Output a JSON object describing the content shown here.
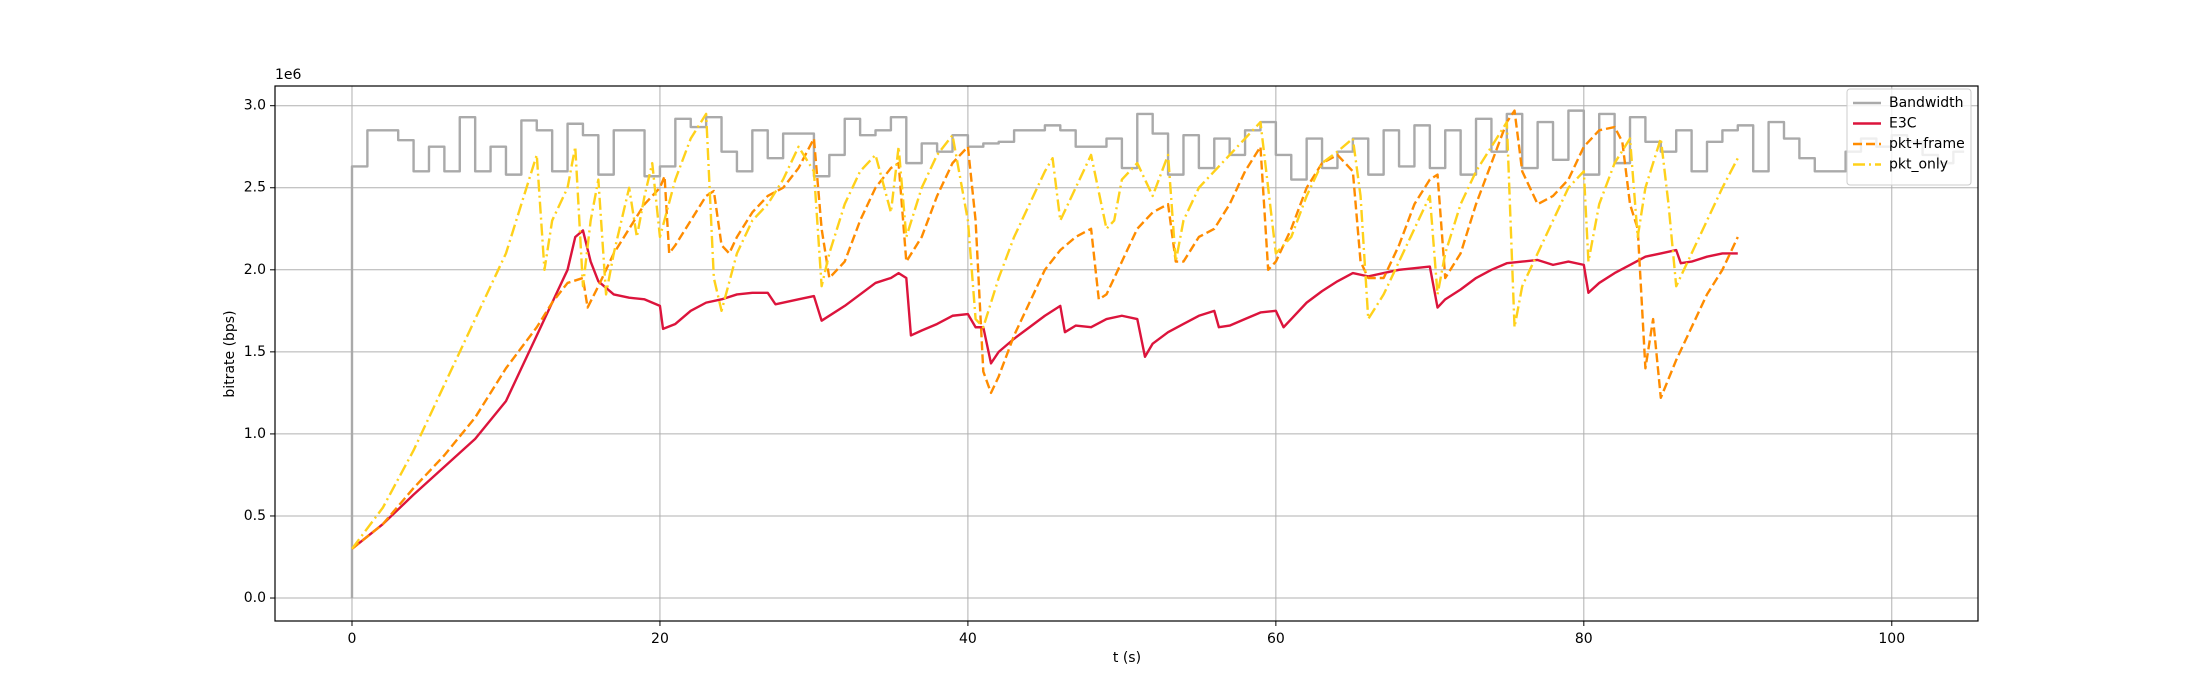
{
  "chart_data": {
    "type": "line",
    "xlabel": "t (s)",
    "ylabel": "bitrate (bps)",
    "y_offset_text": "1e6",
    "xlim": [
      -5,
      105.6
    ],
    "ylim": [
      -140000,
      3120000
    ],
    "xticks": [
      0,
      20,
      40,
      60,
      80,
      100
    ],
    "yticks": [
      {
        "value": 0,
        "label": "0.0"
      },
      {
        "value": 500000,
        "label": "0.5"
      },
      {
        "value": 1000000,
        "label": "1.0"
      },
      {
        "value": 1500000,
        "label": "1.5"
      },
      {
        "value": 2000000,
        "label": "2.0"
      },
      {
        "value": 2500000,
        "label": "2.5"
      },
      {
        "value": 3000000,
        "label": "3.0"
      }
    ],
    "grid": true,
    "legend": "upper right",
    "series": [
      {
        "name": "Bandwidth",
        "color": "#aaaaaa",
        "linestyle": "solid",
        "drawstyle": "steps-post",
        "x": [
          0,
          0,
          1,
          2,
          3,
          4,
          5,
          6,
          7,
          8,
          9,
          10,
          11,
          12,
          13,
          14,
          15,
          16,
          17,
          18,
          19,
          20,
          21,
          22,
          23,
          24,
          25,
          26,
          27,
          28,
          29,
          30,
          31,
          32,
          33,
          34,
          35,
          36,
          37,
          38,
          39,
          40,
          41,
          42,
          43,
          44,
          45,
          46,
          47,
          48,
          49,
          50,
          51,
          52,
          53,
          54,
          55,
          56,
          57,
          58,
          59,
          60,
          61,
          62,
          63,
          64,
          65,
          66,
          67,
          68,
          69,
          70,
          71,
          72,
          73,
          74,
          75,
          76,
          77,
          78,
          79,
          80,
          81,
          82,
          83,
          84,
          85,
          86,
          87,
          88,
          89,
          90,
          91,
          92,
          93,
          94,
          95,
          96,
          97,
          98,
          99,
          100,
          101,
          102,
          103,
          104,
          104.7
        ],
        "values": [
          0,
          2630000,
          2850000,
          2850000,
          2790000,
          2600000,
          2750000,
          2600000,
          2930000,
          2600000,
          2750000,
          2580000,
          2910000,
          2850000,
          2600000,
          2890000,
          2820000,
          2580000,
          2850000,
          2850000,
          2570000,
          2630000,
          2920000,
          2870000,
          2930000,
          2720000,
          2600000,
          2850000,
          2680000,
          2830000,
          2830000,
          2570000,
          2700000,
          2920000,
          2820000,
          2850000,
          2930000,
          2650000,
          2770000,
          2720000,
          2820000,
          2750000,
          2770000,
          2780000,
          2850000,
          2850000,
          2880000,
          2850000,
          2750000,
          2750000,
          2800000,
          2620000,
          2950000,
          2830000,
          2580000,
          2820000,
          2620000,
          2800000,
          2700000,
          2850000,
          2900000,
          2700000,
          2550000,
          2800000,
          2620000,
          2720000,
          2800000,
          2580000,
          2850000,
          2630000,
          2880000,
          2620000,
          2850000,
          2580000,
          2920000,
          2720000,
          2950000,
          2620000,
          2900000,
          2670000,
          2970000,
          2580000,
          2950000,
          2650000,
          2930000,
          2780000,
          2720000,
          2850000,
          2600000,
          2780000,
          2850000,
          2880000,
          2600000,
          2900000,
          2800000,
          2680000,
          2600000,
          2600000,
          2720000,
          2800000,
          2750000,
          2820000,
          2780000,
          2700000,
          2650000,
          2720000,
          2720000
        ]
      },
      {
        "name": "E3C",
        "color": "#dc143c",
        "linestyle": "solid",
        "x": [
          0,
          2,
          4,
          6,
          8,
          10,
          11,
          12,
          13,
          14,
          14.5,
          15,
          15.5,
          16,
          17,
          18,
          19,
          20,
          20.2,
          21,
          22,
          23,
          24,
          25,
          26,
          27,
          27.5,
          29,
          30,
          30.5,
          32,
          33,
          34,
          35,
          35.5,
          36,
          36.3,
          37,
          38,
          39,
          40,
          40.5,
          41,
          41.5,
          42,
          43,
          44,
          45,
          46,
          46.3,
          47,
          48,
          49,
          50,
          51,
          51.5,
          52,
          53,
          54,
          55,
          56,
          56.3,
          57,
          58,
          59,
          60,
          60.5,
          61,
          62,
          63,
          64,
          65,
          66,
          67,
          68,
          69,
          70,
          70.5,
          71,
          72,
          73,
          74,
          75,
          76,
          77,
          78,
          79,
          80,
          80.3,
          81,
          82,
          83,
          84,
          85,
          86,
          86.3,
          87,
          88,
          89,
          90
        ],
        "values": [
          300000,
          450000,
          630000,
          800000,
          970000,
          1200000,
          1400000,
          1600000,
          1800000,
          2000000,
          2200000,
          2240000,
          2050000,
          1930000,
          1850000,
          1830000,
          1820000,
          1780000,
          1640000,
          1670000,
          1750000,
          1800000,
          1820000,
          1850000,
          1860000,
          1860000,
          1790000,
          1820000,
          1840000,
          1690000,
          1780000,
          1850000,
          1920000,
          1950000,
          1980000,
          1950000,
          1600000,
          1630000,
          1670000,
          1720000,
          1730000,
          1650000,
          1650000,
          1430000,
          1500000,
          1580000,
          1650000,
          1720000,
          1780000,
          1620000,
          1660000,
          1650000,
          1700000,
          1720000,
          1700000,
          1470000,
          1550000,
          1620000,
          1670000,
          1720000,
          1750000,
          1650000,
          1660000,
          1700000,
          1740000,
          1750000,
          1650000,
          1700000,
          1800000,
          1870000,
          1930000,
          1980000,
          1960000,
          1980000,
          2000000,
          2010000,
          2020000,
          1770000,
          1820000,
          1880000,
          1950000,
          2000000,
          2040000,
          2050000,
          2060000,
          2030000,
          2050000,
          2030000,
          1860000,
          1920000,
          1980000,
          2030000,
          2080000,
          2100000,
          2120000,
          2040000,
          2050000,
          2080000,
          2100000,
          2100000
        ]
      },
      {
        "name": "pkt+frame",
        "color": "#ff8c00",
        "linestyle": "dashed",
        "x": [
          0,
          2,
          4,
          6,
          8,
          10,
          12,
          13,
          14,
          15,
          15.3,
          16,
          17,
          18,
          19,
          20,
          20.3,
          20.6,
          21,
          22,
          23,
          23.5,
          24,
          24.5,
          25,
          26,
          27,
          28,
          29,
          30,
          30.5,
          31,
          32,
          33,
          34,
          35,
          35.5,
          36,
          37,
          38,
          39,
          40,
          40.5,
          41,
          41.5,
          42,
          43,
          44,
          45,
          46,
          47,
          48,
          48.5,
          49,
          50,
          51,
          52,
          53,
          53.5,
          54,
          55,
          56,
          57,
          58,
          59,
          59.5,
          60,
          61,
          62,
          63,
          64,
          65,
          65.5,
          66,
          67,
          68,
          69,
          70,
          70.5,
          71,
          72,
          73,
          74,
          75,
          75.5,
          76,
          77,
          78,
          79,
          80,
          81,
          82,
          82.5,
          83,
          83.5,
          84,
          84.5,
          85,
          86,
          87,
          88,
          89,
          90
        ],
        "values": [
          300000,
          450000,
          670000,
          870000,
          1100000,
          1400000,
          1650000,
          1800000,
          1920000,
          1950000,
          1770000,
          1900000,
          2100000,
          2250000,
          2400000,
          2500000,
          2570000,
          2100000,
          2150000,
          2300000,
          2450000,
          2480000,
          2150000,
          2100000,
          2200000,
          2350000,
          2450000,
          2500000,
          2620000,
          2800000,
          2250000,
          1950000,
          2050000,
          2300000,
          2500000,
          2620000,
          2650000,
          2050000,
          2200000,
          2450000,
          2650000,
          2750000,
          2300000,
          1380000,
          1250000,
          1350000,
          1600000,
          1800000,
          2000000,
          2120000,
          2200000,
          2250000,
          1820000,
          1850000,
          2050000,
          2250000,
          2350000,
          2400000,
          2050000,
          2050000,
          2200000,
          2250000,
          2400000,
          2600000,
          2750000,
          2000000,
          2050000,
          2250000,
          2500000,
          2650000,
          2700000,
          2600000,
          2050000,
          1950000,
          1950000,
          2150000,
          2400000,
          2550000,
          2580000,
          1950000,
          2100000,
          2400000,
          2650000,
          2900000,
          2970000,
          2600000,
          2400000,
          2450000,
          2550000,
          2750000,
          2850000,
          2870000,
          2780000,
          2400000,
          2250000,
          1400000,
          1700000,
          1220000,
          1450000,
          1650000,
          1850000,
          2000000,
          2200000
        ]
      },
      {
        "name": "pkt_only",
        "color": "#ffd11a",
        "linestyle": "dashdot",
        "x": [
          0,
          2,
          4,
          6,
          8,
          10,
          11,
          12,
          12.5,
          13,
          14,
          14.5,
          15,
          15.5,
          16,
          16.5,
          17,
          18,
          18.5,
          19,
          19.5,
          20,
          21,
          22,
          23,
          23.5,
          24,
          25,
          26,
          27,
          28,
          29,
          30,
          30.5,
          31,
          32,
          33,
          34,
          35,
          35.5,
          36,
          37,
          38,
          39,
          40,
          40.5,
          41,
          42,
          43,
          44,
          45,
          45.5,
          46,
          47,
          48,
          49,
          49.5,
          50,
          51,
          52,
          53,
          53.5,
          54,
          55,
          56,
          57,
          58,
          59,
          60,
          61,
          62,
          63,
          64,
          65,
          65.5,
          66,
          67,
          68,
          69,
          70,
          70.5,
          71,
          72,
          73,
          74,
          75,
          75.5,
          76,
          77,
          78,
          79,
          80,
          80.3,
          81,
          82,
          83,
          83.5,
          84,
          85,
          85.5,
          86,
          87,
          88,
          89,
          90
        ],
        "values": [
          300000,
          550000,
          900000,
          1300000,
          1700000,
          2100000,
          2400000,
          2700000,
          2000000,
          2300000,
          2500000,
          2750000,
          1900000,
          2300000,
          2550000,
          1850000,
          2100000,
          2500000,
          2200000,
          2450000,
          2650000,
          2200000,
          2550000,
          2800000,
          2950000,
          1950000,
          1750000,
          2100000,
          2300000,
          2400000,
          2550000,
          2750000,
          2600000,
          1900000,
          2100000,
          2400000,
          2600000,
          2700000,
          2350000,
          2750000,
          2200000,
          2500000,
          2700000,
          2820000,
          2300000,
          1700000,
          1650000,
          1950000,
          2200000,
          2400000,
          2600000,
          2680000,
          2300000,
          2500000,
          2700000,
          2250000,
          2300000,
          2550000,
          2650000,
          2450000,
          2700000,
          2050000,
          2300000,
          2500000,
          2600000,
          2700000,
          2800000,
          2900000,
          2100000,
          2200000,
          2450000,
          2650000,
          2720000,
          2800000,
          2450000,
          1700000,
          1850000,
          2050000,
          2250000,
          2450000,
          1850000,
          2100000,
          2400000,
          2600000,
          2750000,
          2900000,
          1650000,
          1900000,
          2100000,
          2300000,
          2500000,
          2600000,
          2050000,
          2400000,
          2650000,
          2800000,
          2200000,
          2500000,
          2800000,
          2400000,
          1900000,
          2100000,
          2300000,
          2500000,
          2680000
        ]
      }
    ]
  }
}
